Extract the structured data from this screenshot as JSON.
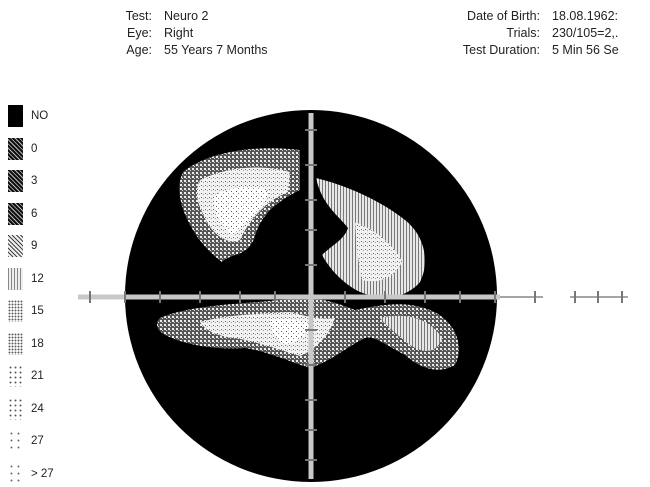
{
  "header": {
    "left": [
      {
        "label": "Test:",
        "value": "Neuro 2"
      },
      {
        "label": "Eye:",
        "value": "Right"
      },
      {
        "label": "Age:",
        "value": "55 Years 7 Months"
      }
    ],
    "right": [
      {
        "label": "Date of Birth:",
        "value": "18.08.1962:"
      },
      {
        "label": "Trials:",
        "value": "230/105=2,."
      },
      {
        "label": "Test Duration:",
        "value": "5 Min 56 Se"
      }
    ]
  },
  "legend": {
    "items": [
      {
        "label": "NO",
        "shade": "solid"
      },
      {
        "label": "0",
        "shade": "dense"
      },
      {
        "label": "3",
        "shade": "dense"
      },
      {
        "label": "6",
        "shade": "dense"
      },
      {
        "label": "9",
        "shade": "medium"
      },
      {
        "label": "12",
        "shade": "vertical"
      },
      {
        "label": "15",
        "shade": "light"
      },
      {
        "label": "18",
        "shade": "light"
      },
      {
        "label": "21",
        "shade": "sparse"
      },
      {
        "label": "24",
        "shade": "sparse"
      },
      {
        "label": "27",
        "shade": "verysparse"
      },
      {
        "label": "> 27",
        "shade": "verysparse"
      }
    ]
  },
  "colors": {
    "field_background": "#000000",
    "axis": "#c8c8c8",
    "text": "#222222"
  },
  "icons": {
    "visual_field_map": "grayscale-dot-plot"
  }
}
